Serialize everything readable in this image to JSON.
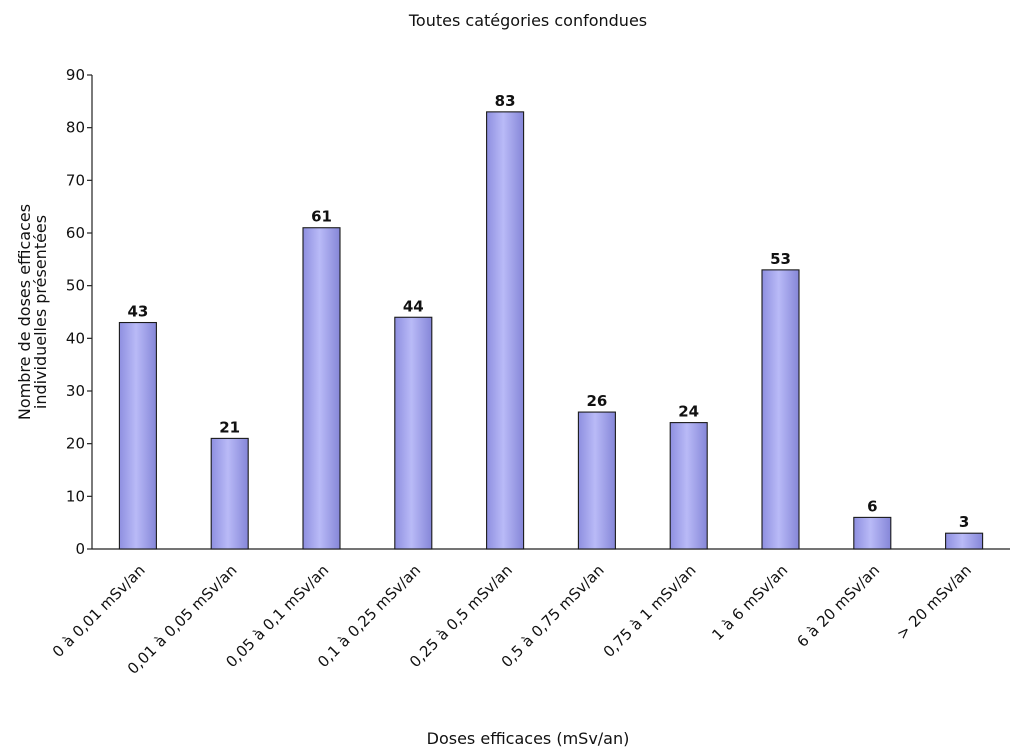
{
  "chart_data": {
    "type": "bar",
    "title": "Toutes catégories confondues",
    "xlabel": "Doses efficaces (mSv/an)",
    "ylabel": [
      "Nombre de doses efficaces",
      "individuelles présentées"
    ],
    "categories": [
      "0 à 0,01 mSv/an",
      "0,01 à 0,05 mSv/an",
      "0,05 à 0,1 mSv/an",
      "0,1 à 0,25 mSv/an",
      "0,25 à 0,5 mSv/an",
      "0,5 à 0,75 mSv/an",
      "0,75 à 1 mSv/an",
      "1 à 6 mSv/an",
      "6 à 20 mSv/an",
      "> 20 mSv/an"
    ],
    "values": [
      43,
      21,
      61,
      44,
      83,
      26,
      24,
      53,
      6,
      3
    ],
    "ylim": [
      0,
      90
    ],
    "yticks": [
      0,
      10,
      20,
      30,
      40,
      50,
      60,
      70,
      80,
      90
    ],
    "grid": false,
    "legend": "none",
    "bar_color": "#a9aaf2",
    "bar_edge_color": "#1a1a1a"
  }
}
